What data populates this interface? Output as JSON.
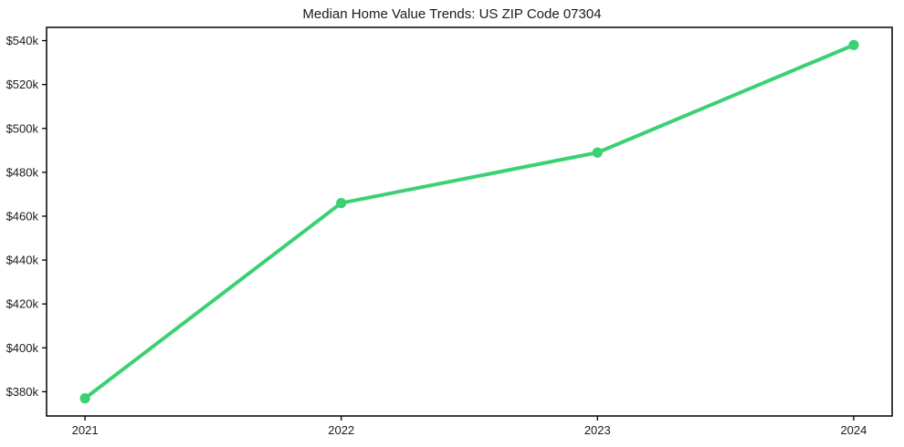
{
  "colors": {
    "line": "#3bd173",
    "marker": "#3bd173",
    "axis": "#000000",
    "text": "#1a1a1a",
    "background": "#ffffff"
  },
  "chart_data": {
    "type": "line",
    "title": "Median Home Value Trends: US ZIP Code 07304",
    "xlabel": "",
    "ylabel": "",
    "x": [
      2021,
      2022,
      2023,
      2024
    ],
    "values": [
      377000,
      466000,
      489000,
      538000
    ],
    "xtick_labels": [
      "2021",
      "2022",
      "2023",
      "2024"
    ],
    "yticks": [
      380000,
      400000,
      420000,
      440000,
      460000,
      480000,
      500000,
      520000,
      540000
    ],
    "ytick_labels": [
      "$380k",
      "$400k",
      "$420k",
      "$440k",
      "$460k",
      "$480k",
      "$500k",
      "$520k",
      "$540k"
    ],
    "xlim": [
      2020.85,
      2024.15
    ],
    "ylim": [
      368950,
      546050
    ],
    "grid": false,
    "legend": null,
    "line_width": 4,
    "marker_radius": 5.6
  }
}
